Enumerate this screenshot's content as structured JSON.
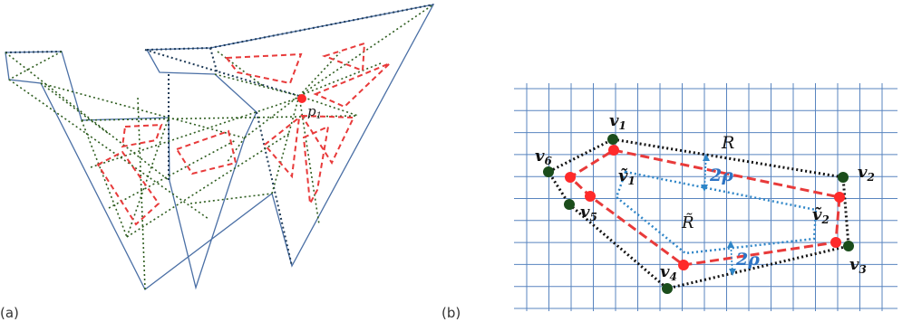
{
  "colors": {
    "polygon_outline": "#4a6fa5",
    "dotted_dark": "#1f3b57",
    "dotted_green": "#2e5d1f",
    "cell_dash": "#e83a3a",
    "grid": "#3c6fb4",
    "vertex_dark": "#1b4d1b",
    "vertex_red": "#ff2a2a",
    "tilde_blue": "#2f86c8",
    "label_blue": "#2e74c4"
  },
  "left_panel": {
    "point_label": "p",
    "point_subscript": "1",
    "caption": "(a)"
  },
  "right_panel": {
    "caption": "(b)",
    "region_label": "R",
    "inner_region_label": "R̃",
    "offset_label": "2ρ",
    "vertices": [
      {
        "name": "v",
        "sub": "1"
      },
      {
        "name": "v",
        "sub": "2"
      },
      {
        "name": "v",
        "sub": "3"
      },
      {
        "name": "v",
        "sub": "4"
      },
      {
        "name": "v",
        "sub": "5"
      },
      {
        "name": "v",
        "sub": "6"
      }
    ],
    "tilde_vertices": [
      {
        "name": "ṽ",
        "sub": "1"
      },
      {
        "name": "ṽ",
        "sub": "2"
      }
    ]
  }
}
